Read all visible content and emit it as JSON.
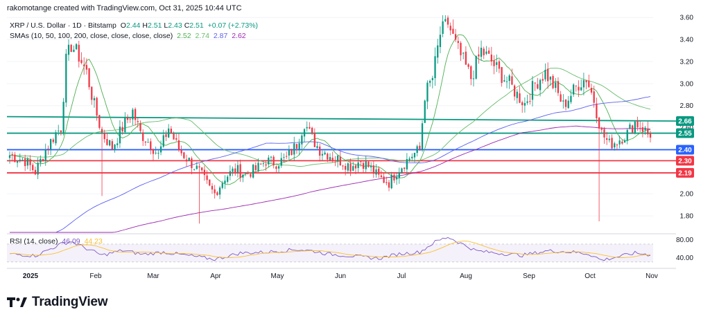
{
  "header": {
    "created_by": "rakomotange created with TradingView.com, Oct 31, 2025 10:44 UTC"
  },
  "legend": {
    "symbol": "XRP / U.S. Dollar · 1D · Bitstamp",
    "ohlc": [
      {
        "k": "O",
        "v": "2.44"
      },
      {
        "k": "H",
        "v": "2.51"
      },
      {
        "k": "L",
        "v": "2.43"
      },
      {
        "k": "C",
        "v": "2.51"
      }
    ],
    "change": "+0.07 (+2.73%)",
    "sma_label": "SMAs (10, 50, 100, 200, close, close, close, close)",
    "sma_values": [
      "2.52",
      "2.74",
      "2.87",
      "2.62"
    ],
    "rsi_label": "RSI (14, close)",
    "rsi_values": [
      "46.09",
      "44.23"
    ]
  },
  "logo": {
    "text": "TradingView"
  },
  "colors": {
    "up": "#089981",
    "down": "#f23645",
    "sma10": "#4caf50",
    "sma50": "#66bb6a",
    "sma100": "#5b5ff0",
    "sma200": "#9c27b0",
    "green_level": "#089981",
    "blue_level": "#2962ff",
    "red_level": "#f23645",
    "rsi": "#7e57c2",
    "rsi_ma": "#fbc02d"
  },
  "chart_data": {
    "type": "candlestick",
    "ylim": [
      1.65,
      3.62
    ],
    "y_ticks": [
      "1.80",
      "2.00",
      "2.20",
      "2.40",
      "2.60",
      "2.80",
      "3.00",
      "3.20",
      "3.40",
      "3.60"
    ],
    "x_labels": [
      "2025",
      "Feb",
      "Mar",
      "Apr",
      "May",
      "Jun",
      "Jul",
      "Aug",
      "Sep",
      "Oct",
      "Nov"
    ],
    "levels": [
      {
        "label": "2.66",
        "value": 2.66,
        "color": "green",
        "trend_start": 2.7
      },
      {
        "label": "2.55",
        "value": 2.55,
        "color": "green"
      },
      {
        "label": "2.40",
        "value": 2.4,
        "color": "blue"
      },
      {
        "label": "2.30",
        "value": 2.3,
        "color": "red"
      },
      {
        "label": "2.19",
        "value": 2.19,
        "color": "red"
      }
    ],
    "close_keypoints": [
      [
        0,
        2.35
      ],
      [
        6,
        2.3
      ],
      [
        10,
        2.2
      ],
      [
        14,
        2.4
      ],
      [
        18,
        2.55
      ],
      [
        20,
        2.6
      ],
      [
        22,
        3.2
      ],
      [
        24,
        3.35
      ],
      [
        27,
        3.25
      ],
      [
        30,
        3.1
      ],
      [
        33,
        2.8
      ],
      [
        36,
        2.55
      ],
      [
        40,
        2.42
      ],
      [
        44,
        2.6
      ],
      [
        48,
        2.75
      ],
      [
        51,
        2.55
      ],
      [
        55,
        2.45
      ],
      [
        58,
        2.35
      ],
      [
        62,
        2.6
      ],
      [
        66,
        2.4
      ],
      [
        70,
        2.3
      ],
      [
        74,
        2.2
      ],
      [
        78,
        2.05
      ],
      [
        80,
        2.0
      ],
      [
        84,
        2.15
      ],
      [
        88,
        2.22
      ],
      [
        92,
        2.18
      ],
      [
        96,
        2.22
      ],
      [
        100,
        2.3
      ],
      [
        104,
        2.28
      ],
      [
        108,
        2.32
      ],
      [
        112,
        2.45
      ],
      [
        115,
        2.65
      ],
      [
        118,
        2.5
      ],
      [
        121,
        2.4
      ],
      [
        125,
        2.35
      ],
      [
        129,
        2.3
      ],
      [
        133,
        2.25
      ],
      [
        137,
        2.3
      ],
      [
        140,
        2.25
      ],
      [
        144,
        2.15
      ],
      [
        148,
        2.1
      ],
      [
        151,
        2.2
      ],
      [
        154,
        2.28
      ],
      [
        157,
        2.35
      ],
      [
        160,
        2.4
      ],
      [
        162,
        2.9
      ],
      [
        165,
        3.05
      ],
      [
        168,
        3.45
      ],
      [
        171,
        3.55
      ],
      [
        174,
        3.35
      ],
      [
        177,
        3.2
      ],
      [
        180,
        3.05
      ],
      [
        184,
        3.3
      ],
      [
        188,
        3.2
      ],
      [
        191,
        3.1
      ],
      [
        195,
        3.0
      ],
      [
        198,
        2.9
      ],
      [
        201,
        2.82
      ],
      [
        205,
        3.0
      ],
      [
        209,
        3.1
      ],
      [
        213,
        2.95
      ],
      [
        216,
        2.8
      ],
      [
        219,
        2.9
      ],
      [
        222,
        3.0
      ],
      [
        225,
        3.05
      ],
      [
        228,
        2.85
      ],
      [
        231,
        2.55
      ],
      [
        234,
        2.45
      ],
      [
        237,
        2.48
      ],
      [
        241,
        2.55
      ],
      [
        244,
        2.65
      ],
      [
        247,
        2.6
      ],
      [
        250,
        2.51
      ]
    ],
    "events": [
      {
        "i": 74,
        "low": 1.73
      },
      {
        "i": 230,
        "low": 1.75
      },
      {
        "i": 36,
        "low": 1.98
      },
      {
        "i": 170,
        "high": 3.62
      }
    ],
    "rsi": {
      "ylim": [
        25,
        90
      ],
      "y_ticks": [
        "40.00",
        "80.00"
      ],
      "band": [
        30,
        70
      ],
      "keypoints": [
        [
          0,
          48
        ],
        [
          10,
          44
        ],
        [
          20,
          70
        ],
        [
          24,
          76
        ],
        [
          30,
          60
        ],
        [
          36,
          45
        ],
        [
          44,
          56
        ],
        [
          52,
          47
        ],
        [
          60,
          52
        ],
        [
          70,
          44
        ],
        [
          80,
          36
        ],
        [
          90,
          50
        ],
        [
          100,
          52
        ],
        [
          112,
          58
        ],
        [
          118,
          55
        ],
        [
          124,
          48
        ],
        [
          132,
          44
        ],
        [
          144,
          38
        ],
        [
          152,
          48
        ],
        [
          160,
          52
        ],
        [
          166,
          75
        ],
        [
          171,
          86
        ],
        [
          176,
          72
        ],
        [
          182,
          55
        ],
        [
          190,
          50
        ],
        [
          200,
          45
        ],
        [
          210,
          55
        ],
        [
          220,
          52
        ],
        [
          226,
          48
        ],
        [
          231,
          34
        ],
        [
          236,
          40
        ],
        [
          244,
          50
        ],
        [
          250,
          46
        ]
      ]
    }
  }
}
